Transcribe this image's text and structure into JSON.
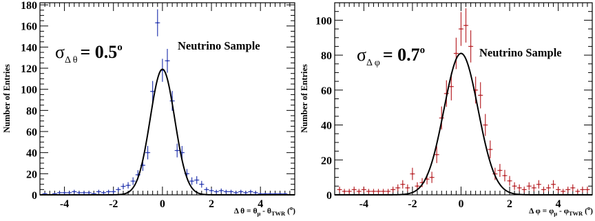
{
  "chart_data": [
    {
      "type": "scatter",
      "title": "",
      "ylabel": "Number of Entries",
      "xlabel_main": "Δ θ = θ",
      "xlabel_sub1": "μ",
      "xlabel_mid": " - θ",
      "xlabel_sub2": "TWR",
      "xlabel_unit_open": " (",
      "xlabel_unit": "o",
      "xlabel_unit_close": ")",
      "annotation_sigma": "σ",
      "annotation_sub": "Δ θ",
      "annotation_value": "= 0.5",
      "annotation_sup": "o",
      "sample_label": "Neutrino Sample",
      "xlim": [
        -5,
        5.4
      ],
      "ylim": [
        0,
        182
      ],
      "xticks": [
        -4,
        -2,
        0,
        2,
        4
      ],
      "yticks": [
        0,
        20,
        40,
        60,
        80,
        100,
        120,
        140,
        160,
        180
      ],
      "series": [
        {
          "marker_color": "#2a3bb0",
          "x": [
            -4.8,
            -4.4,
            -4.2,
            -4.0,
            -3.8,
            -3.6,
            -3.4,
            -3.2,
            -3.0,
            -2.8,
            -2.6,
            -2.4,
            -2.2,
            -2.0,
            -1.8,
            -1.6,
            -1.4,
            -1.2,
            -1.0,
            -0.8,
            -0.6,
            -0.4,
            -0.2,
            0.0,
            0.2,
            0.4,
            0.6,
            0.8,
            1.0,
            1.2,
            1.4,
            1.6,
            1.8,
            2.0,
            2.2,
            2.4,
            2.6,
            2.8,
            3.0,
            3.2,
            3.4,
            3.6,
            3.8,
            4.0,
            4.2,
            4.4,
            4.6,
            4.8,
            5.0
          ],
          "y": [
            1,
            1,
            2,
            2,
            2,
            3,
            2,
            2,
            2,
            1,
            3,
            2,
            3,
            3,
            5,
            8,
            9,
            13,
            19,
            28,
            40,
            98,
            163,
            118,
            127,
            89,
            42,
            40,
            20,
            13,
            14,
            10,
            5,
            4,
            3,
            4,
            3,
            3,
            2,
            3,
            2,
            3,
            2,
            1,
            1,
            1,
            1,
            1,
            1
          ],
          "yerr": [
            1,
            1,
            1.5,
            1.5,
            1.5,
            1.8,
            1.5,
            1.5,
            1.5,
            1,
            1.8,
            1.5,
            1.8,
            1.8,
            2.3,
            2.8,
            3,
            3.6,
            4.4,
            5.3,
            6.4,
            9.9,
            12.8,
            10.9,
            11.3,
            9.4,
            6.5,
            6.3,
            4.5,
            3.6,
            3.7,
            3.2,
            2.3,
            2,
            1.8,
            2,
            1.8,
            1.8,
            1.5,
            1.8,
            1.5,
            1.8,
            1.5,
            1,
            1,
            1,
            1,
            1,
            1
          ]
        }
      ],
      "fit": {
        "type": "gaussian",
        "mean": 0.0,
        "sigma": 0.5,
        "amplitude": 119,
        "color": "#000000"
      }
    },
    {
      "type": "scatter",
      "title": "",
      "ylabel": "Number of Entries",
      "xlabel_main": "Δ φ = φ",
      "xlabel_sub1": "μ",
      "xlabel_mid": " - φ",
      "xlabel_sub2": "TWR",
      "xlabel_unit_open": " (",
      "xlabel_unit": "o",
      "xlabel_unit_close": ")",
      "annotation_sigma": "σ",
      "annotation_sub": "Δ φ",
      "annotation_value": "= 0.7",
      "annotation_sup": "o",
      "sample_label": "Neutrino Sample",
      "xlim": [
        -5.2,
        5.4
      ],
      "ylim": [
        0,
        110
      ],
      "xticks": [
        -4,
        -2,
        0,
        2,
        4
      ],
      "yticks": [
        0,
        20,
        40,
        60,
        80,
        100
      ],
      "series": [
        {
          "marker_color": "#b8262b",
          "x": [
            -5.0,
            -4.8,
            -4.6,
            -4.4,
            -4.2,
            -4.0,
            -3.8,
            -3.6,
            -3.4,
            -3.2,
            -3.0,
            -2.8,
            -2.6,
            -2.4,
            -2.2,
            -2.0,
            -1.8,
            -1.6,
            -1.4,
            -1.2,
            -1.0,
            -0.8,
            -0.6,
            -0.4,
            -0.2,
            0.0,
            0.2,
            0.4,
            0.6,
            0.8,
            1.0,
            1.2,
            1.4,
            1.6,
            1.8,
            2.0,
            2.2,
            2.4,
            2.6,
            2.8,
            3.0,
            3.2,
            3.4,
            3.6,
            3.8,
            4.0,
            4.2,
            4.4,
            4.6,
            4.8,
            5.0,
            5.2
          ],
          "y": [
            3,
            2,
            2,
            3,
            2,
            3,
            2,
            2,
            2,
            2,
            2,
            3,
            4,
            6,
            4,
            12,
            5,
            7,
            9,
            10,
            23,
            44,
            58,
            62,
            81,
            95,
            97,
            85,
            60,
            57,
            40,
            26,
            12,
            14,
            11,
            8,
            5,
            4,
            3,
            5,
            4,
            6,
            3,
            4,
            6,
            3,
            2,
            3,
            4,
            2,
            3,
            3
          ],
          "yerr": [
            1.7,
            1.4,
            1.4,
            1.7,
            1.4,
            1.7,
            1.4,
            1.4,
            1.4,
            1.4,
            1.4,
            1.7,
            2,
            2.4,
            2,
            3.5,
            2.2,
            2.6,
            3,
            3.2,
            4.8,
            6.6,
            7.6,
            7.9,
            9,
            9.7,
            9.8,
            9.2,
            7.7,
            7.5,
            6.3,
            5.1,
            3.5,
            3.7,
            3.3,
            2.8,
            2.2,
            2,
            1.7,
            2.2,
            2,
            2.4,
            1.7,
            2,
            2.4,
            1.7,
            1.4,
            1.7,
            2,
            1.4,
            1.7,
            1.7
          ]
        }
      ],
      "fit": {
        "type": "gaussian",
        "mean": 0.0,
        "sigma": 0.7,
        "amplitude": 81,
        "color": "#000000"
      }
    }
  ]
}
